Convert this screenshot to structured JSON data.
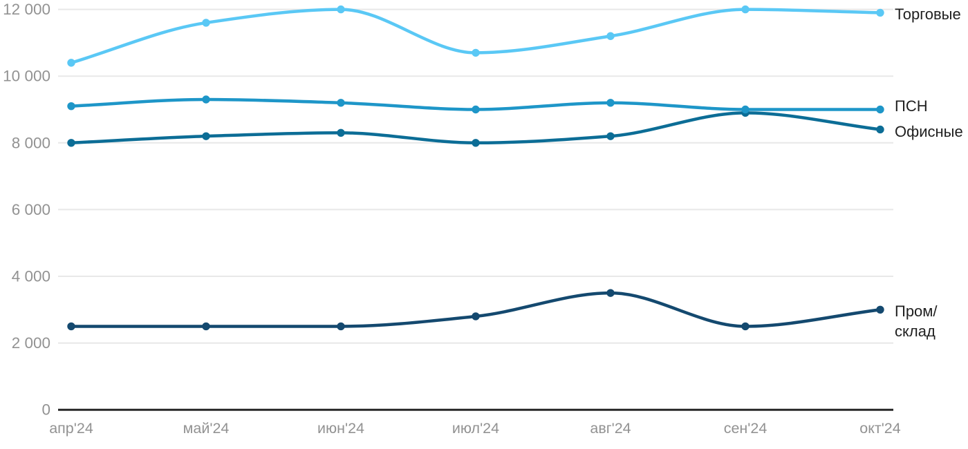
{
  "chart_data": {
    "type": "line",
    "title": "",
    "xlabel": "",
    "ylabel": "",
    "categories": [
      "апр'24",
      "май'24",
      "июн'24",
      "июл'24",
      "авг'24",
      "сен'24",
      "окт'24"
    ],
    "series": [
      {
        "name": "Торговые",
        "label_lines": [
          "Торговые"
        ],
        "color": "#5ac8f5",
        "values": [
          10400,
          11600,
          12000,
          10700,
          11200,
          12000,
          11900
        ],
        "label_dy": 2
      },
      {
        "name": "ПСН",
        "label_lines": [
          "ПСН"
        ],
        "color": "#1e96c8",
        "values": [
          9100,
          9300,
          9200,
          9000,
          9200,
          9000,
          9000
        ],
        "label_dy": -5
      },
      {
        "name": "Офисные",
        "label_lines": [
          "Офисные"
        ],
        "color": "#0c6d96",
        "values": [
          8000,
          8200,
          8300,
          8000,
          8200,
          8900,
          8400
        ],
        "label_dy": 3
      },
      {
        "name": "Пром/склад",
        "label_lines": [
          "Пром/",
          "склад"
        ],
        "color": "#14496f",
        "values": [
          2500,
          2500,
          2500,
          2800,
          3500,
          2500,
          3000
        ],
        "label_dy": 2
      }
    ],
    "y_ticks": [
      {
        "value": 0,
        "label": "0"
      },
      {
        "value": 2000,
        "label": "2 000"
      },
      {
        "value": 4000,
        "label": "4 000"
      },
      {
        "value": 6000,
        "label": "6 000"
      },
      {
        "value": 8000,
        "label": "8 000"
      },
      {
        "value": 10000,
        "label": "10 000"
      },
      {
        "value": 12000,
        "label": "12 000"
      }
    ],
    "ylim": [
      0,
      12000
    ],
    "grid": true,
    "legend_position": "right-of-line-end",
    "colors": {
      "grid_line": "#e8e8e8",
      "axis_line": "#262626",
      "tick_label": "#929292",
      "legend_label": "#1f1f1f",
      "background": "#ffffff"
    }
  }
}
